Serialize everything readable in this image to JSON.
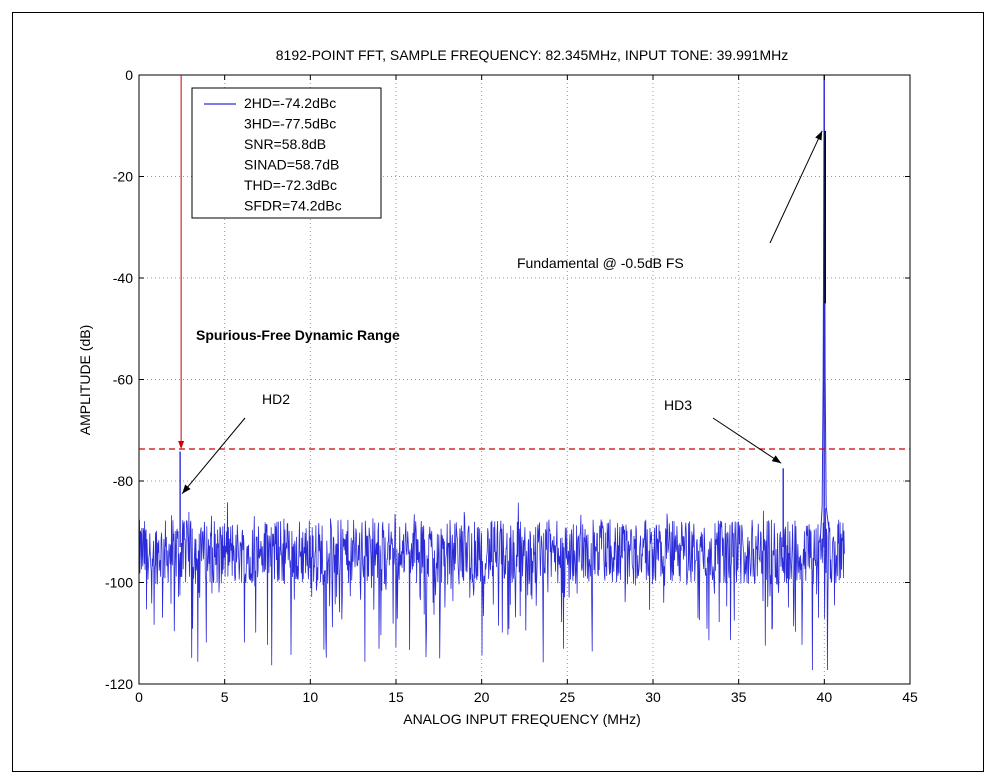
{
  "chart_data": {
    "type": "line",
    "title": "8192-POINT FFT, SAMPLE FREQUENCY: 82.345MHz, INPUT TONE: 39.991MHz",
    "xlabel": "ANALOG INPUT FREQUENCY (MHz)",
    "ylabel": "AMPLITUDE (dB)",
    "xlim": [
      0,
      45
    ],
    "ylim": [
      -120,
      0
    ],
    "xticks": [
      "0",
      "5",
      "10",
      "15",
      "20",
      "25",
      "30",
      "35",
      "40",
      "45"
    ],
    "yticks": [
      "0",
      "-20",
      "-40",
      "-60",
      "-80",
      "-100",
      "-120"
    ],
    "grid": true,
    "legend_position": "top-left",
    "legend": [
      "2HD=-74.2dBc",
      "3HD=-77.5dBc",
      "SNR=58.8dB",
      "SINAD=58.7dB",
      "THD=-72.3dBc",
      "SFDR=74.2dBc"
    ],
    "spectrum": {
      "x_range": [
        0,
        41.17
      ],
      "noise_floor_mean": -94,
      "noise_floor_spread": 8,
      "noise_min": -120,
      "series_color": "#2b2bd9"
    },
    "peaks": [
      {
        "name": "Fundamental",
        "x": 39.99,
        "y": 0
      },
      {
        "name": "HD2",
        "x": 2.4,
        "y": -74.2
      },
      {
        "name": "HD3",
        "x": 37.6,
        "y": -77.5
      }
    ],
    "sfdr_line": {
      "y": -73.7,
      "color": "#cc0000"
    },
    "annotations": {
      "sfdr_label": "Spurious-Free Dynamic Range",
      "fundamental_label": "Fundamental @ -0.5dB FS",
      "hd2_label": "HD2",
      "hd3_label": "HD3"
    }
  }
}
